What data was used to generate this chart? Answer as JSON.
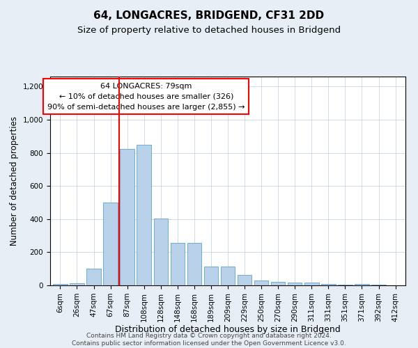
{
  "title": "64, LONGACRES, BRIDGEND, CF31 2DD",
  "subtitle": "Size of property relative to detached houses in Bridgend",
  "xlabel": "Distribution of detached houses by size in Bridgend",
  "ylabel": "Number of detached properties",
  "categories": [
    "6sqm",
    "26sqm",
    "47sqm",
    "67sqm",
    "87sqm",
    "108sqm",
    "128sqm",
    "148sqm",
    "168sqm",
    "189sqm",
    "209sqm",
    "229sqm",
    "250sqm",
    "270sqm",
    "290sqm",
    "311sqm",
    "331sqm",
    "351sqm",
    "371sqm",
    "392sqm",
    "412sqm"
  ],
  "values": [
    10,
    12,
    100,
    500,
    825,
    850,
    405,
    255,
    255,
    115,
    115,
    65,
    30,
    20,
    15,
    15,
    10,
    5,
    10,
    5,
    0
  ],
  "bar_color": "#b8d0e8",
  "bar_edgecolor": "#6aaed6",
  "vline_color": "red",
  "vline_x_index": 3.5,
  "annotation_text": "64 LONGACRES: 79sqm\n← 10% of detached houses are smaller (326)\n90% of semi-detached houses are larger (2,855) →",
  "annotation_box_facecolor": "white",
  "annotation_box_edgecolor": "red",
  "ylim": [
    0,
    1260
  ],
  "yticks": [
    0,
    200,
    400,
    600,
    800,
    1000,
    1200
  ],
  "footer": "Contains HM Land Registry data © Crown copyright and database right 2024.\nContains public sector information licensed under the Open Government Licence v3.0.",
  "background_color": "#e8eef5",
  "plot_background": "#ffffff",
  "title_fontsize": 11,
  "subtitle_fontsize": 9.5,
  "xlabel_fontsize": 9,
  "ylabel_fontsize": 8.5,
  "tick_fontsize": 7.5,
  "annotation_fontsize": 8,
  "footer_fontsize": 6.5
}
